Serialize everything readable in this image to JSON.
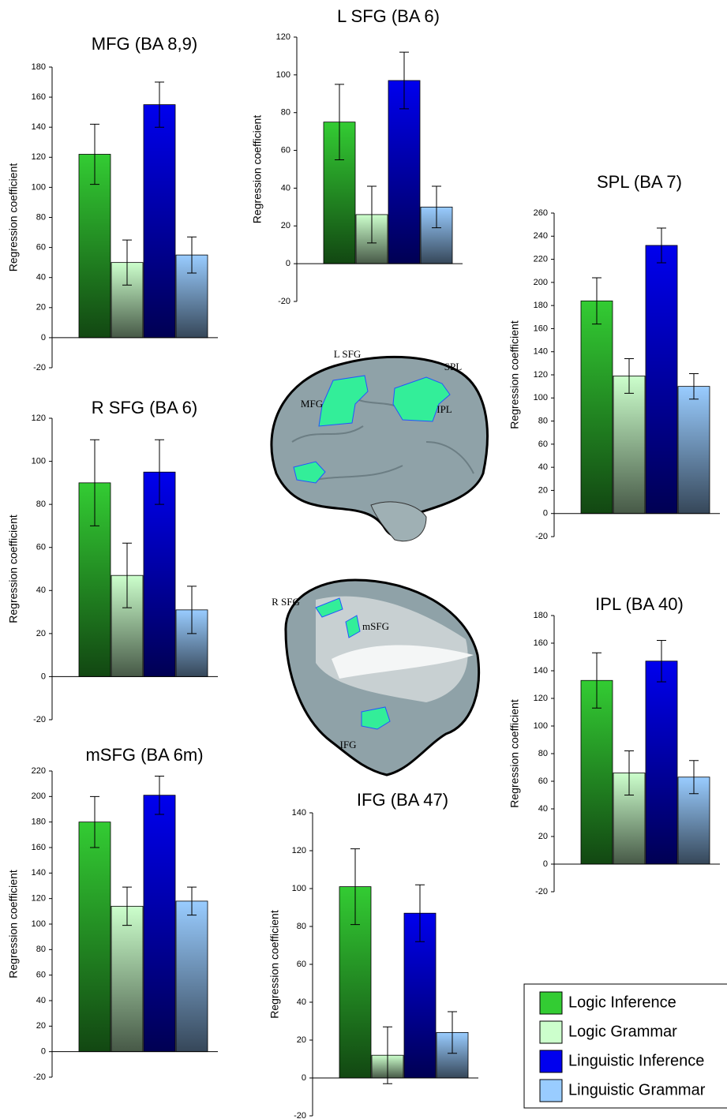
{
  "chart_data": [
    {
      "type": "bar",
      "title": "MFG (BA 8,9)",
      "y_label": "Regression coefficient",
      "ylim": [
        -20,
        180
      ],
      "yticks": [
        -20,
        0,
        20,
        40,
        60,
        80,
        100,
        120,
        140,
        160,
        180
      ],
      "values": [
        122,
        50,
        155,
        55
      ],
      "errors": [
        20,
        15,
        15,
        12
      ]
    },
    {
      "type": "bar",
      "title": "L SFG (BA 6)",
      "y_label": "Regression coefficient",
      "ylim": [
        -20,
        120
      ],
      "yticks": [
        -20,
        0,
        20,
        40,
        60,
        80,
        100,
        120
      ],
      "values": [
        75,
        26,
        97,
        30
      ],
      "errors": [
        20,
        15,
        15,
        11
      ]
    },
    {
      "type": "bar",
      "title": "SPL (BA 7)",
      "y_label": "Regression coefficient",
      "ylim": [
        -20,
        260
      ],
      "yticks": [
        -20,
        0,
        20,
        40,
        60,
        80,
        100,
        120,
        140,
        160,
        180,
        200,
        220,
        240,
        260
      ],
      "values": [
        184,
        119,
        232,
        110
      ],
      "errors": [
        20,
        15,
        15,
        11
      ]
    },
    {
      "type": "bar",
      "title": "R SFG (BA 6)",
      "y_label": "Regression coefficient",
      "ylim": [
        -20,
        120
      ],
      "yticks": [
        -20,
        0,
        20,
        40,
        60,
        80,
        100,
        120
      ],
      "values": [
        90,
        47,
        95,
        31
      ],
      "errors": [
        20,
        15,
        15,
        11
      ]
    },
    {
      "type": "bar",
      "title": "mSFG (BA 6m)",
      "y_label": "Regression coefficient",
      "ylim": [
        -20,
        220
      ],
      "yticks": [
        -20,
        0,
        20,
        40,
        60,
        80,
        100,
        120,
        140,
        160,
        180,
        200,
        220
      ],
      "values": [
        180,
        114,
        201,
        118
      ],
      "errors": [
        20,
        15,
        15,
        11
      ]
    },
    {
      "type": "bar",
      "title": "IFG (BA 47)",
      "y_label": "Regression coefficient",
      "ylim": [
        -20,
        140
      ],
      "yticks": [
        -20,
        0,
        20,
        40,
        60,
        80,
        100,
        120,
        140
      ],
      "values": [
        101,
        12,
        87,
        24
      ],
      "errors": [
        20,
        15,
        15,
        11
      ]
    },
    {
      "type": "bar",
      "title": "IPL (BA 40)",
      "y_label": "Regression coefficient",
      "ylim": [
        -20,
        180
      ],
      "yticks": [
        -20,
        0,
        20,
        40,
        60,
        80,
        100,
        120,
        140,
        160,
        180
      ],
      "values": [
        133,
        66,
        147,
        63
      ],
      "errors": [
        20,
        16,
        15,
        12
      ]
    }
  ],
  "legend": {
    "items": [
      {
        "name": "Logic Inference",
        "color": "#33cc33"
      },
      {
        "name": "Logic Grammar",
        "color": "#ccffcc"
      },
      {
        "name": "Linguistic Inference",
        "color": "#0000ee"
      },
      {
        "name": "Linguistic Grammar",
        "color": "#99ccff"
      }
    ]
  },
  "brain_images": [
    {
      "labels": [
        "L SFG",
        "SPL",
        "MFG",
        "IPL"
      ]
    },
    {
      "labels": [
        "R SFG",
        "mSFG",
        "IFG"
      ]
    }
  ]
}
